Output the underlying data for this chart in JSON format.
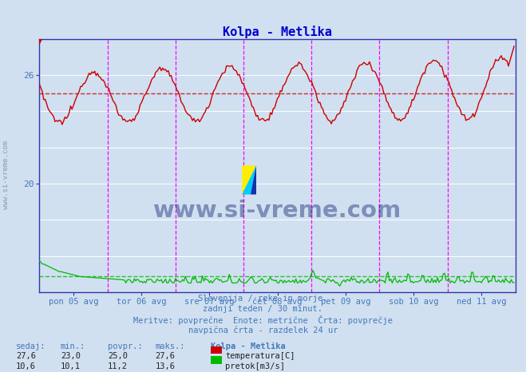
{
  "title": "Kolpa - Metlika",
  "title_color": "#0000cc",
  "bg_color": "#d0e0f0",
  "plot_bg_color": "#d0e0f0",
  "border_color": "#3333aa",
  "grid_color": "#ffffff",
  "tick_color": "#4477bb",
  "temp_color": "#cc0000",
  "flow_color": "#00bb00",
  "avg_temp_color": "#cc0000",
  "avg_flow_color": "#00bb00",
  "vline_color": "#ff00ff",
  "x_labels": [
    "pon 05 avg",
    "tor 06 avg",
    "sre 07 avg",
    "čet 08 avg",
    "pet 09 avg",
    "sob 10 avg",
    "ned 11 avg"
  ],
  "y_ticks_vals": [
    20,
    26
  ],
  "ylim_min": 14.0,
  "ylim_max": 28.0,
  "xlim_min": 0,
  "xlim_max": 336,
  "avg_temp": 25.0,
  "avg_flow": 11.2,
  "temp_min": 23.0,
  "temp_max": 27.6,
  "flow_min": 10.1,
  "flow_max": 13.6,
  "temp_sedaj": 27.6,
  "flow_sedaj": 10.6,
  "subtitle_lines": [
    "Slovenija / reke in morje.",
    "zadnji teden / 30 minut.",
    "Meritve: povprečne  Enote: metrične  Črta: povprečje",
    "navpična črta - razdelek 24 ur"
  ],
  "legend_title": "Kolpa - Metlika",
  "legend_temp_label": "temperatura[C]",
  "legend_flow_label": "pretok[m3/s]",
  "watermark": "www.si-vreme.com",
  "watermark_color": "#1a2a7a",
  "logo_colors": [
    "#ffee00",
    "#00ccff",
    "#1122aa"
  ],
  "flow_display_base": 14.5,
  "flow_display_scale": 0.35,
  "flow_avg_display": 14.86
}
